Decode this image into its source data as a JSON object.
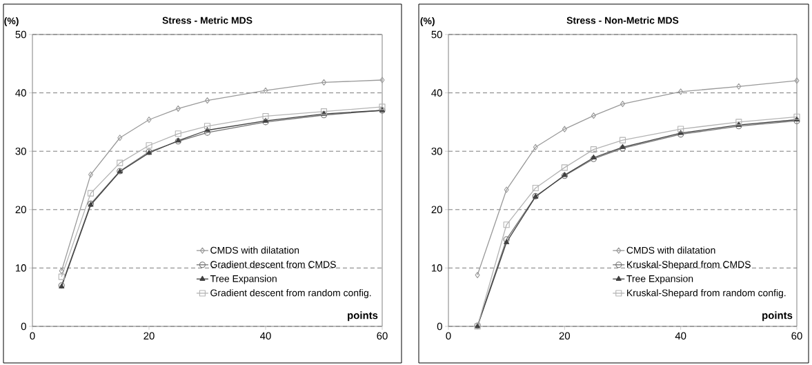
{
  "chart_data": [
    {
      "type": "line",
      "title": "Stress - Metric MDS",
      "xlabel": "points",
      "ylabel": "(%)",
      "x": [
        5,
        10,
        15,
        20,
        25,
        30,
        40,
        50,
        60
      ],
      "xlim": [
        0,
        60
      ],
      "xticks": [
        0,
        20,
        40,
        60
      ],
      "ylim": [
        0,
        50
      ],
      "yticks": [
        0,
        10,
        20,
        30,
        40,
        50
      ],
      "grid": "y",
      "legend": "bottom right",
      "series": [
        {
          "name": "CMDS with dilatation",
          "color": "#999999",
          "marker": "diamond",
          "values": [
            9.5,
            26,
            32.3,
            35.4,
            37.3,
            38.7,
            40.4,
            41.8,
            42.2
          ]
        },
        {
          "name": "Gradient descent from CMDS",
          "color": "#737373",
          "marker": "circle",
          "values": [
            7,
            21,
            26.6,
            29.9,
            31.7,
            33.2,
            35.0,
            36.2,
            37.0
          ]
        },
        {
          "name": "Tree Expansion",
          "color": "#404040",
          "marker": "triangle",
          "values": [
            6.8,
            20.8,
            26.5,
            29.7,
            31.8,
            33.6,
            35.2,
            36.4,
            37.0
          ]
        },
        {
          "name": "Gradient descent from random config.",
          "color": "#b3b3b3",
          "marker": "square",
          "values": [
            8.5,
            22.8,
            28,
            31,
            33,
            34.3,
            36.0,
            36.8,
            37.6
          ]
        }
      ]
    },
    {
      "type": "line",
      "title": "Stress - Non-Metric MDS",
      "xlabel": "points",
      "ylabel": "(%)",
      "x": [
        5,
        10,
        15,
        20,
        25,
        30,
        40,
        50,
        60
      ],
      "xlim": [
        0,
        60
      ],
      "xticks": [
        0,
        20,
        40,
        60
      ],
      "ylim": [
        0,
        50
      ],
      "yticks": [
        0,
        10,
        20,
        30,
        40,
        50
      ],
      "grid": "y",
      "legend": "bottom right",
      "series": [
        {
          "name": "CMDS with dilatation",
          "color": "#999999",
          "marker": "diamond",
          "values": [
            8.8,
            23.4,
            30.7,
            33.8,
            36.1,
            38.1,
            40.2,
            41.1,
            42.1
          ]
        },
        {
          "name": "Kruskal-Shepard from CMDS",
          "color": "#737373",
          "marker": "circle",
          "values": [
            0.1,
            14.9,
            22.3,
            25.8,
            28.7,
            30.5,
            32.9,
            34.3,
            35.2
          ]
        },
        {
          "name": "Tree Expansion",
          "color": "#404040",
          "marker": "triangle",
          "values": [
            0,
            14.4,
            22.2,
            25.9,
            28.9,
            30.7,
            33.1,
            34.5,
            35.4
          ]
        },
        {
          "name": "Kruskal-Shepard from random config.",
          "color": "#b3b3b3",
          "marker": "square",
          "values": [
            0,
            17.4,
            23.7,
            27.2,
            30.3,
            31.9,
            33.8,
            35.0,
            35.9
          ]
        }
      ]
    }
  ]
}
